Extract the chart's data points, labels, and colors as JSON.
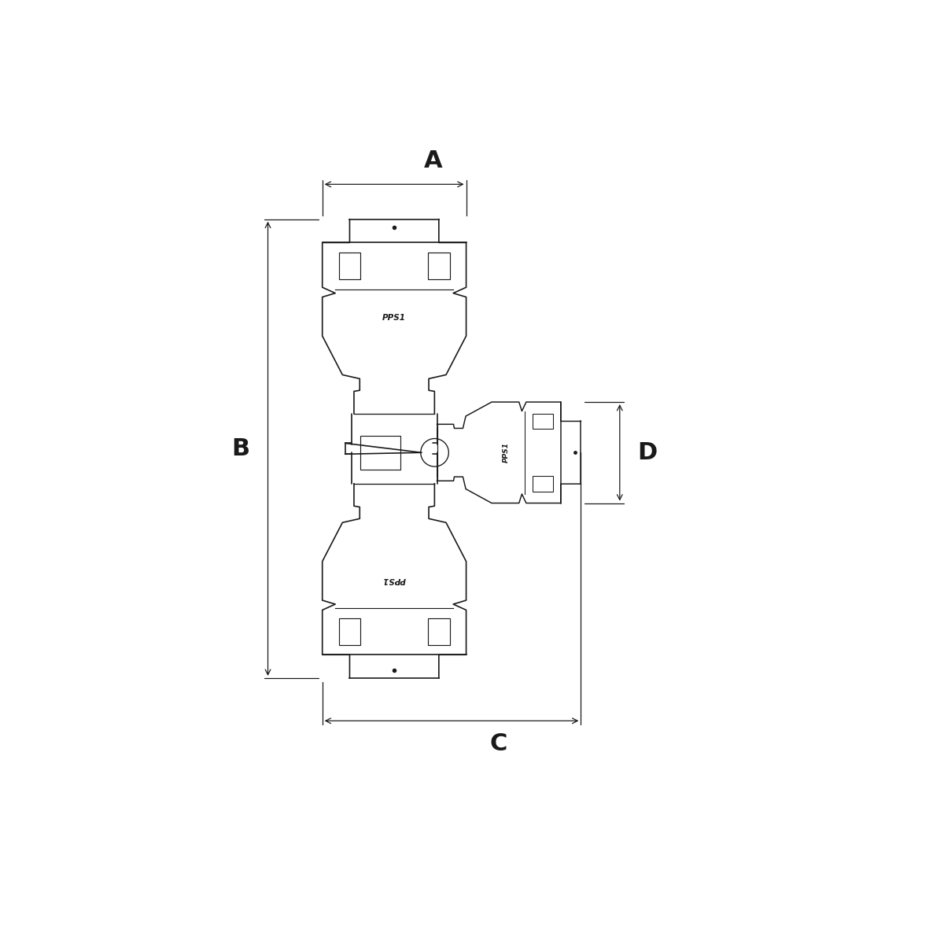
{
  "bg_color": "#ffffff",
  "line_color": "#1a1a1a",
  "dim_color": "#1a1a1a",
  "label_A": "A",
  "label_B": "B",
  "label_C": "C",
  "label_D": "D",
  "label_PPS1_top": "PPS1",
  "label_PPS1_bottom": "PPS1",
  "label_PPS1_right": "PPS1",
  "figsize": [
    12,
    12
  ],
  "dpi": 100,
  "title": ""
}
